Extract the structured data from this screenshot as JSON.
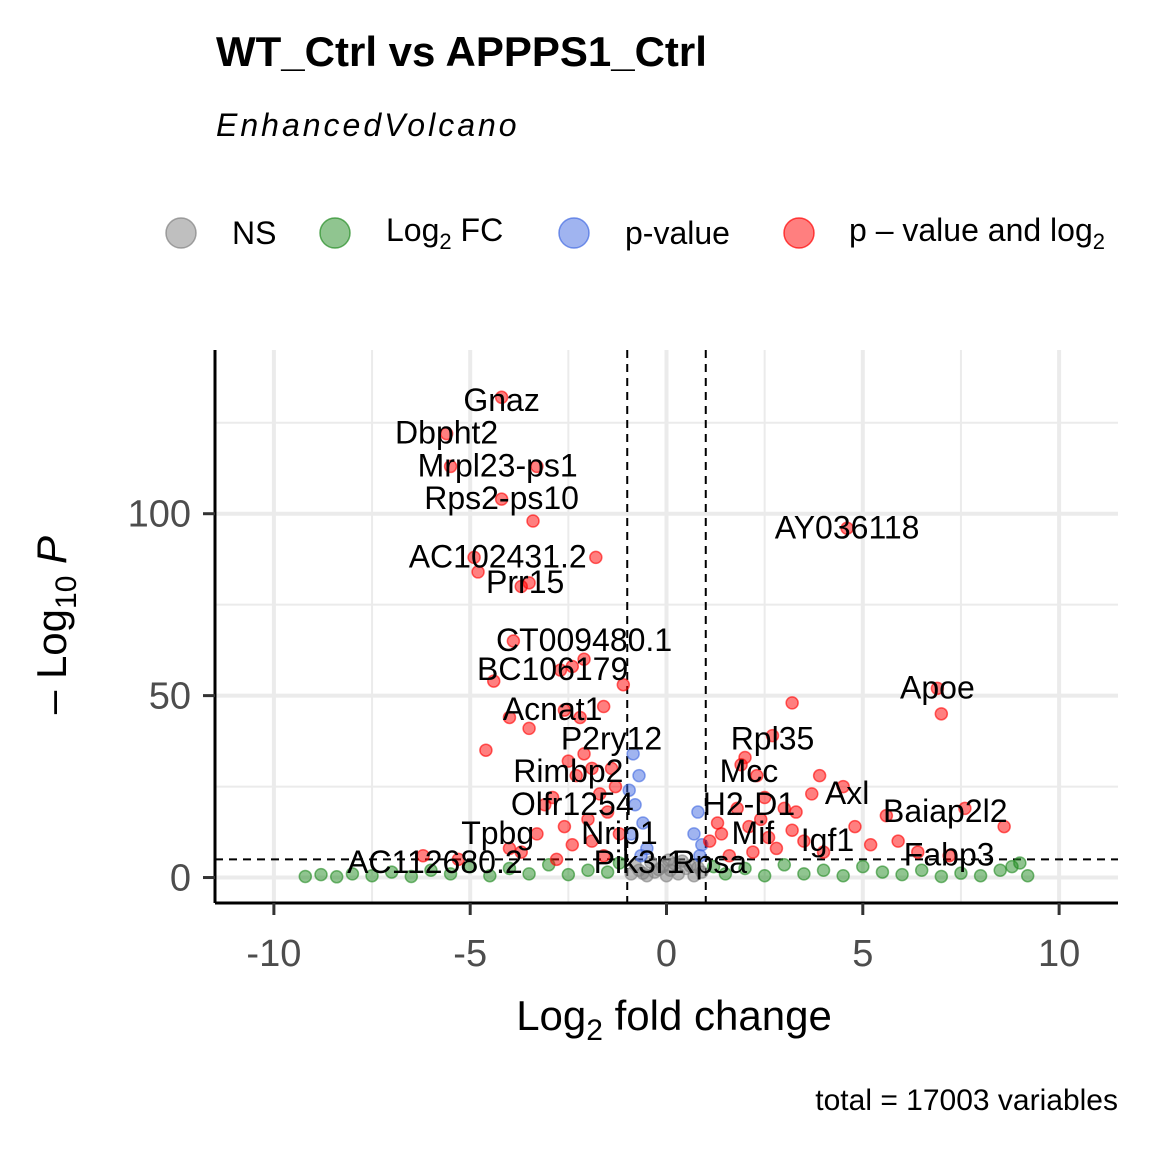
{
  "chart_data": {
    "type": "scatter",
    "title": "WT_Ctrl vs APPPS1_Ctrl",
    "subtitle": "EnhancedVolcano",
    "xlabel": "Log",
    "xlabel_sub": "2",
    "xlabel_rest": " fold change",
    "ylabel_prefix": "– Log",
    "ylabel_sub": "10",
    "ylabel_var": "P",
    "caption": "total = 17003 variables",
    "xlim": [
      -11.5,
      11.5
    ],
    "ylim": [
      -7,
      145
    ],
    "x_ticks": [
      {
        "value": -10,
        "label": "-10"
      },
      {
        "value": -5,
        "label": "-5"
      },
      {
        "value": 0,
        "label": "0"
      },
      {
        "value": 5,
        "label": "5"
      },
      {
        "value": 10,
        "label": "10"
      }
    ],
    "y_ticks": [
      {
        "value": 0,
        "label": "0"
      },
      {
        "value": 50,
        "label": "50"
      },
      {
        "value": 100,
        "label": "100"
      }
    ],
    "fc_cutoff": [
      -1,
      1
    ],
    "p_cutoff": 5,
    "grid": true,
    "legend": {
      "position": "top",
      "entries": [
        {
          "key": "ns",
          "label": "NS",
          "color": "#808080"
        },
        {
          "key": "fc",
          "label": "Log",
          "sub": "2",
          "rest": " FC",
          "color": "#228b22"
        },
        {
          "key": "p",
          "label": "p-value",
          "color": "#4169e1"
        },
        {
          "key": "both",
          "label": "p – value and log",
          "sub": "2",
          "color": "#ff0000"
        }
      ]
    },
    "series": [
      {
        "key": "ns",
        "points": [
          [
            -0.9,
            1
          ],
          [
            -0.7,
            2
          ],
          [
            -0.5,
            0.5
          ],
          [
            -0.3,
            1.5
          ],
          [
            -0.1,
            3
          ],
          [
            0,
            0.5
          ],
          [
            0.1,
            2
          ],
          [
            0.3,
            1
          ],
          [
            0.5,
            2.5
          ],
          [
            0.7,
            0.5
          ],
          [
            0.9,
            1.5
          ],
          [
            -0.8,
            3.5
          ],
          [
            0.2,
            3.8
          ],
          [
            -0.4,
            4.2
          ],
          [
            0.6,
            3.2
          ],
          [
            0.4,
            4.5
          ],
          [
            -0.6,
            1.2
          ],
          [
            0.8,
            2.8
          ],
          [
            -0.2,
            2.2
          ],
          [
            0.05,
            4.8
          ]
        ]
      },
      {
        "key": "fc",
        "points": [
          [
            -9.2,
            0.3
          ],
          [
            -8.8,
            0.8
          ],
          [
            -8.4,
            0.2
          ],
          [
            -8,
            1
          ],
          [
            -7.5,
            0.5
          ],
          [
            -7,
            1.5
          ],
          [
            -6.5,
            0.3
          ],
          [
            -6,
            2
          ],
          [
            -5.5,
            1
          ],
          [
            -5,
            3
          ],
          [
            -4.5,
            0.5
          ],
          [
            -4,
            2.5
          ],
          [
            -3.5,
            1
          ],
          [
            -3,
            3.5
          ],
          [
            -2.5,
            0.8
          ],
          [
            -2,
            2
          ],
          [
            -1.5,
            1.5
          ],
          [
            -1.2,
            4
          ],
          [
            1.2,
            3
          ],
          [
            1.5,
            1
          ],
          [
            2,
            2.5
          ],
          [
            2.5,
            0.5
          ],
          [
            3,
            3.5
          ],
          [
            3.5,
            1
          ],
          [
            4,
            2
          ],
          [
            4.5,
            0.5
          ],
          [
            5,
            3
          ],
          [
            5.5,
            1.5
          ],
          [
            6,
            0.8
          ],
          [
            6.5,
            2
          ],
          [
            7,
            0.3
          ],
          [
            7.5,
            1.2
          ],
          [
            8,
            0.5
          ],
          [
            8.5,
            2
          ],
          [
            8.8,
            3
          ],
          [
            9,
            4
          ],
          [
            9.2,
            0.5
          ]
        ]
      },
      {
        "key": "p",
        "points": [
          [
            -0.9,
            12
          ],
          [
            -0.8,
            20
          ],
          [
            -0.7,
            28
          ],
          [
            -0.85,
            34
          ],
          [
            -0.6,
            15
          ],
          [
            -0.5,
            8
          ],
          [
            0.8,
            18
          ],
          [
            0.9,
            9
          ],
          [
            0.7,
            12
          ],
          [
            -0.95,
            24
          ],
          [
            0.85,
            6
          ],
          [
            -0.65,
            6
          ]
        ]
      },
      {
        "key": "both",
        "points": [
          [
            -4.2,
            132
          ],
          [
            -5.6,
            122
          ],
          [
            -5.5,
            113
          ],
          [
            -3.3,
            113
          ],
          [
            -4.2,
            104
          ],
          [
            -3.4,
            98
          ],
          [
            -1.8,
            88
          ],
          [
            -4.9,
            88
          ],
          [
            -4.8,
            84
          ],
          [
            -3.5,
            81
          ],
          [
            -3.7,
            80
          ],
          [
            4.6,
            96
          ],
          [
            -3.9,
            65
          ],
          [
            -2.1,
            60
          ],
          [
            -2.4,
            58
          ],
          [
            -2.7,
            57
          ],
          [
            -1.1,
            53
          ],
          [
            -4.4,
            54
          ],
          [
            -1.6,
            47
          ],
          [
            -2.6,
            46
          ],
          [
            -2.2,
            44
          ],
          [
            -4,
            44
          ],
          [
            -3.5,
            41
          ],
          [
            -4.6,
            35
          ],
          [
            -2.5,
            32
          ],
          [
            -2.1,
            34
          ],
          [
            -1.4,
            30
          ],
          [
            -1.9,
            30
          ],
          [
            -2.3,
            28
          ],
          [
            -1.3,
            25
          ],
          [
            -1.7,
            23
          ],
          [
            -2.9,
            22
          ],
          [
            -3.1,
            20
          ],
          [
            -1.5,
            18
          ],
          [
            -2,
            16
          ],
          [
            -2.6,
            14
          ],
          [
            -3.3,
            12
          ],
          [
            -1.2,
            12
          ],
          [
            -1.9,
            10
          ],
          [
            -2.4,
            9
          ],
          [
            -4,
            8
          ],
          [
            -5.3,
            5
          ],
          [
            -6.2,
            6
          ],
          [
            -1.6,
            6
          ],
          [
            -3.7,
            7
          ],
          [
            -2.8,
            5
          ],
          [
            6.9,
            52
          ],
          [
            7,
            45
          ],
          [
            3.2,
            48
          ],
          [
            2.7,
            39
          ],
          [
            2,
            33
          ],
          [
            1.9,
            31
          ],
          [
            2.3,
            28
          ],
          [
            3.9,
            28
          ],
          [
            4.5,
            25
          ],
          [
            3.7,
            23
          ],
          [
            2.5,
            22
          ],
          [
            3,
            19
          ],
          [
            3.3,
            18
          ],
          [
            5.6,
            17
          ],
          [
            7.6,
            19
          ],
          [
            8.6,
            14
          ],
          [
            4.8,
            14
          ],
          [
            3.2,
            13
          ],
          [
            2.1,
            14
          ],
          [
            1.4,
            12
          ],
          [
            1.1,
            10
          ],
          [
            2.6,
            11
          ],
          [
            3.5,
            10
          ],
          [
            5.2,
            9
          ],
          [
            5.9,
            10
          ],
          [
            2.8,
            8
          ],
          [
            4,
            7
          ],
          [
            1.6,
            6
          ],
          [
            2.2,
            7
          ],
          [
            6.4,
            7
          ],
          [
            7.2,
            6
          ],
          [
            1.3,
            15
          ],
          [
            1.8,
            19
          ],
          [
            2.4,
            16
          ]
        ]
      }
    ],
    "labels": [
      {
        "text": "Gnaz",
        "x": -4.2,
        "y": 131
      },
      {
        "text": "Dbpht2",
        "x": -5.6,
        "y": 122
      },
      {
        "text": "Mrpl23-ps1",
        "x": -4.3,
        "y": 113
      },
      {
        "text": "Rps2-ps10",
        "x": -4.2,
        "y": 104
      },
      {
        "text": "AY036118",
        "x": 4.6,
        "y": 96
      },
      {
        "text": "AC102431.2",
        "x": -4.3,
        "y": 88
      },
      {
        "text": "Prr15",
        "x": -3.6,
        "y": 81
      },
      {
        "text": "CT009480.1",
        "x": -2.1,
        "y": 65
      },
      {
        "text": "BC106179",
        "x": -2.9,
        "y": 57
      },
      {
        "text": "Apoe",
        "x": 6.9,
        "y": 52
      },
      {
        "text": "Acnat1",
        "x": -2.9,
        "y": 46
      },
      {
        "text": "Rpl35",
        "x": 2.7,
        "y": 38
      },
      {
        "text": "P2ry12",
        "x": -1.4,
        "y": 38
      },
      {
        "text": "Mcc",
        "x": 2.1,
        "y": 29
      },
      {
        "text": "Rimbp2",
        "x": -2.5,
        "y": 29
      },
      {
        "text": "Axl",
        "x": 4.6,
        "y": 23
      },
      {
        "text": "H2-D1",
        "x": 2.1,
        "y": 20
      },
      {
        "text": "Olfr1254",
        "x": -2.4,
        "y": 20
      },
      {
        "text": "Baiap2l2",
        "x": 7.1,
        "y": 18
      },
      {
        "text": "Mif",
        "x": 2.2,
        "y": 12
      },
      {
        "text": "Igf1",
        "x": 4.1,
        "y": 10
      },
      {
        "text": "Tpbg",
        "x": -4.3,
        "y": 12
      },
      {
        "text": "Nrip1",
        "x": -1.2,
        "y": 12
      },
      {
        "text": "Fabp3",
        "x": 7.2,
        "y": 6
      },
      {
        "text": "Pik3r1",
        "x": -0.7,
        "y": 4
      },
      {
        "text": "Rpsa",
        "x": 1.1,
        "y": 4
      },
      {
        "text": "AC112680.2",
        "x": -5.9,
        "y": 4
      }
    ]
  }
}
